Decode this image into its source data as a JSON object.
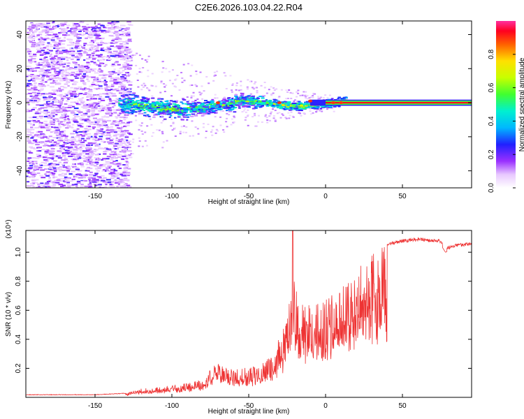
{
  "title": "C2E6.2026.103.04.22.R04",
  "chart_data": [
    {
      "type": "heatmap",
      "xlabel": "Height of straight line (km)",
      "ylabel": "Frequency (Hz)",
      "xlim": [
        -195,
        95
      ],
      "ylim": [
        -50,
        48
      ],
      "xticks": [
        -150,
        -100,
        -50,
        0,
        50
      ],
      "yticks": [
        -40,
        -20,
        0,
        20,
        40
      ],
      "colorbar": {
        "label": "Normalized spectral amplitude",
        "range": [
          0,
          1
        ],
        "ticks": [
          "0.0",
          "0.2",
          "0.4",
          "0.6",
          "0.8"
        ]
      },
      "description_regions": {
        "noise_region_x": [
          -195,
          -130
        ],
        "signal_band_center_hz": 0,
        "strong_line_from_x": 0
      }
    },
    {
      "type": "line",
      "xlabel": "Height of straight line (km)",
      "ylabel": "SNR (10 * v/v)",
      "y_multiplier": "(x10⁴)",
      "xlim": [
        -195,
        95
      ],
      "ylim": [
        0,
        1.15
      ],
      "xticks": [
        -150,
        -100,
        -50,
        0,
        50
      ],
      "yticks": [
        "0.2",
        "0.4",
        "0.6",
        "0.8",
        "1.0"
      ],
      "color": "#ee3333",
      "envelope": {
        "x": [
          -195,
          -150,
          -130,
          -120,
          -100,
          -80,
          -72,
          -65,
          -55,
          -45,
          -35,
          -25,
          -22,
          -15,
          -5,
          0,
          10,
          20,
          30,
          40,
          50,
          60,
          75,
          78,
          85,
          95
        ],
        "y": [
          0.02,
          0.02,
          0.03,
          0.06,
          0.08,
          0.12,
          0.25,
          0.22,
          0.2,
          0.22,
          0.28,
          0.55,
          0.9,
          0.65,
          0.65,
          0.68,
          0.75,
          0.9,
          1.0,
          1.07,
          1.09,
          1.1,
          1.09,
          1.04,
          1.06,
          1.07
        ],
        "spike": {
          "x": -21.5,
          "y": 1.15
        }
      }
    }
  ]
}
